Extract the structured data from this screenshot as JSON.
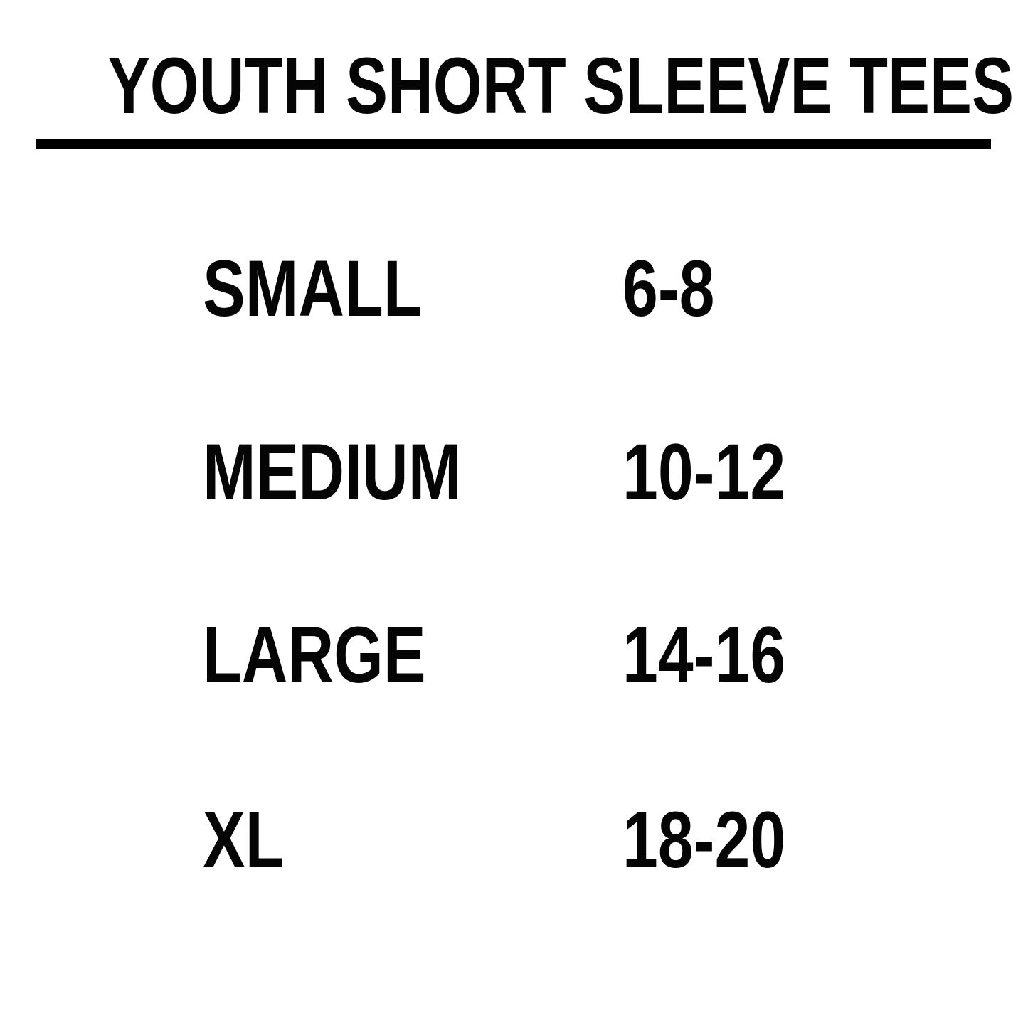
{
  "title": "YOUTH SHORT SLEEVE TEES",
  "size_rows": [
    {
      "size": "SMALL",
      "age_range": "6-8"
    },
    {
      "size": "MEDIUM",
      "age_range": "10-12"
    },
    {
      "size": "LARGE",
      "age_range": "14-16"
    },
    {
      "size": "XL",
      "age_range": "18-20"
    }
  ],
  "colors": {
    "background": "#ffffff",
    "text": "#050505",
    "divider": "#000000"
  }
}
